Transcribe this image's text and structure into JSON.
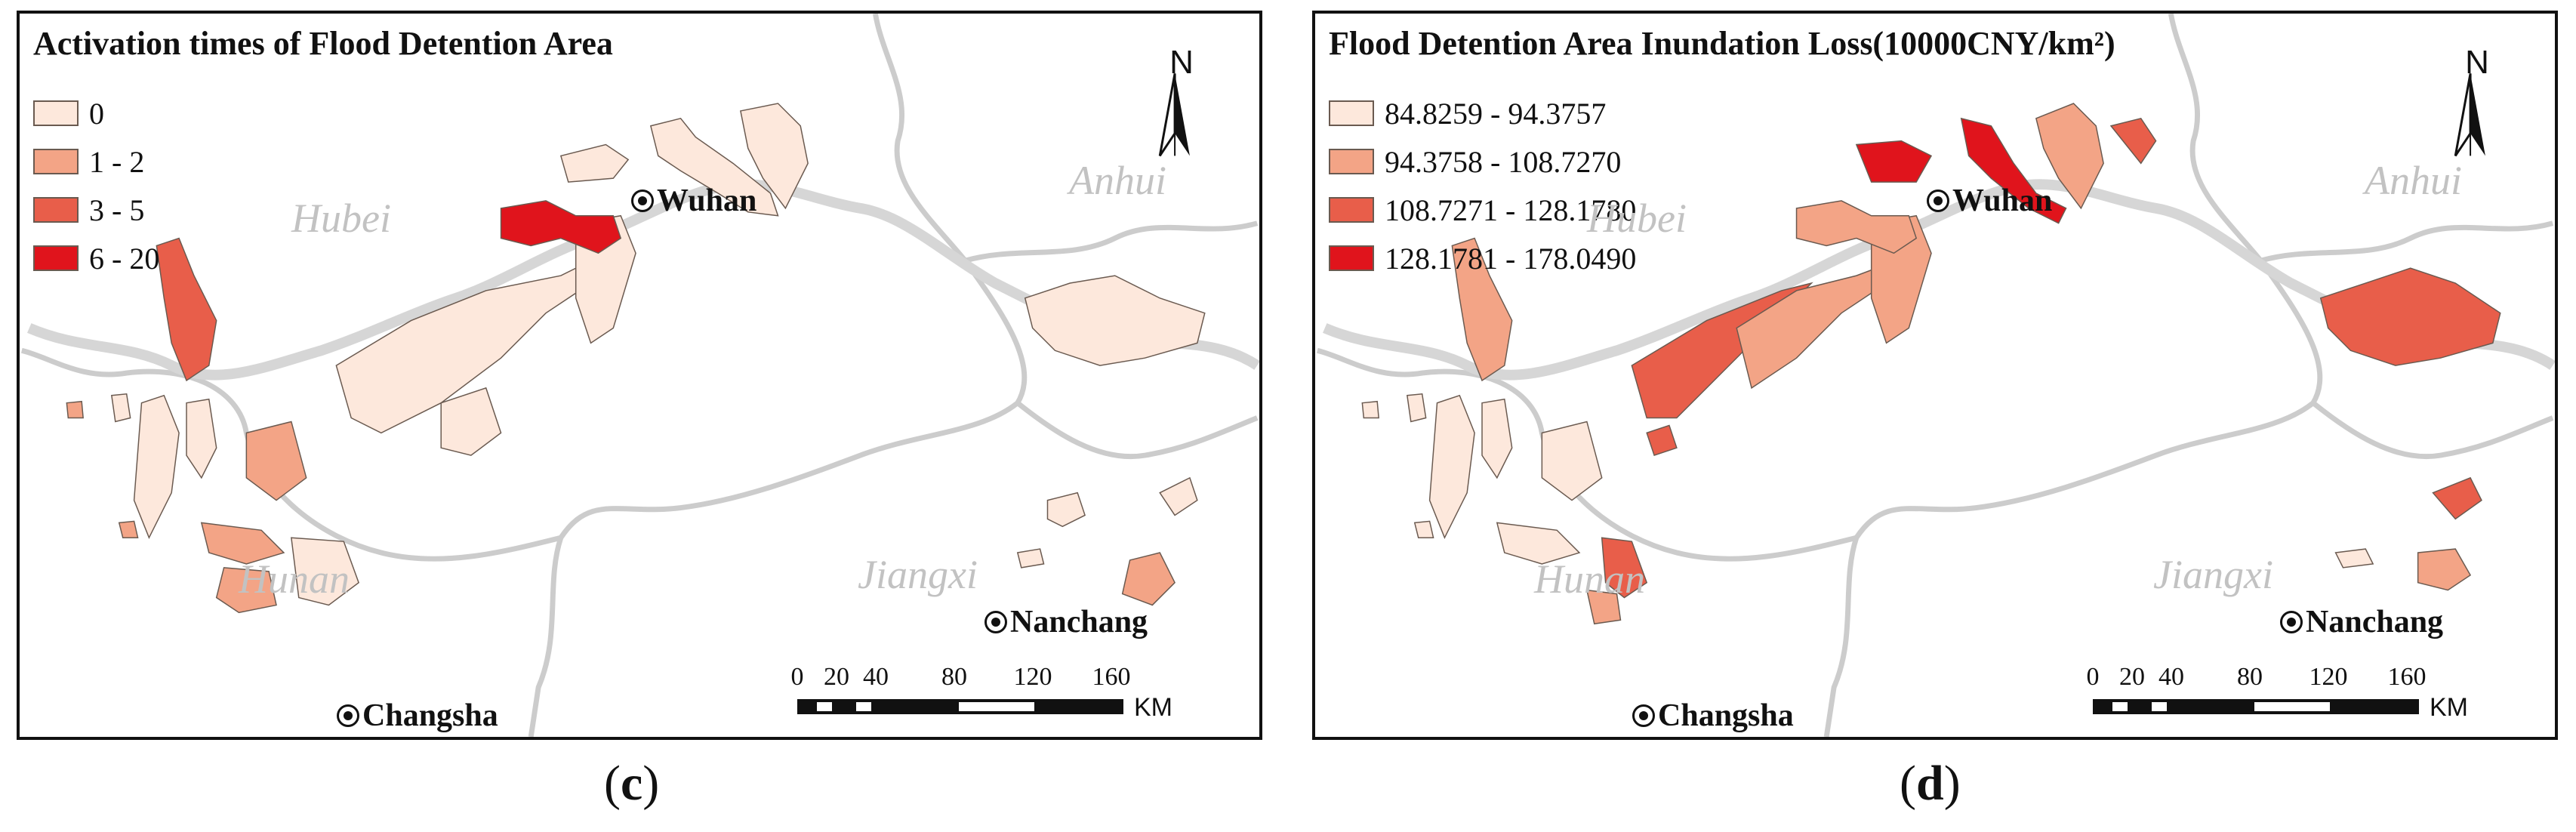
{
  "colors": {
    "class1": "#fde8dc",
    "class2": "#f3a486",
    "class3": "#e85e4a",
    "class4": "#e0141c",
    "boundary": "#c8c8c8",
    "river": "#d0d0d0"
  },
  "panel_c": {
    "legend_title": "Activation times of Flood Detention Area",
    "legend": [
      {
        "label": "0",
        "color": "#fde8dc"
      },
      {
        "label": "1 - 2",
        "color": "#f3a486"
      },
      {
        "label": "3 - 5",
        "color": "#e85e4a"
      },
      {
        "label": "6 - 20",
        "color": "#e0141c"
      }
    ],
    "regions": {
      "hubei": "Hubei",
      "anhui": "Anhui",
      "hunan": "Hunan",
      "jiangxi": "Jiangxi"
    },
    "cities": {
      "wuhan": "Wuhan",
      "nanchang": "Nanchang",
      "changsha": "Changsha"
    },
    "north_label": "N",
    "scale_ticks": [
      "0",
      "20",
      "40",
      "80",
      "120",
      "160"
    ],
    "scale_unit": "KM",
    "caption_open": "(",
    "caption_letter": "c",
    "caption_close": ")"
  },
  "panel_d": {
    "legend_title": "Flood Detention Area Inundation Loss(10000CNY/km²)",
    "legend": [
      {
        "label": "84.8259 - 94.3757",
        "color": "#fde8dc"
      },
      {
        "label": "94.3758 - 108.7270",
        "color": "#f3a486"
      },
      {
        "label": "108.7271 - 128.1780",
        "color": "#e85e4a"
      },
      {
        "label": "128.1781 - 178.0490",
        "color": "#e0141c"
      }
    ],
    "regions": {
      "hubei": "Hubei",
      "anhui": "Anhui",
      "hunan": "Hunan",
      "jiangxi": "Jiangxi"
    },
    "cities": {
      "wuhan": "Wuhan",
      "nanchang": "Nanchang",
      "changsha": "Changsha"
    },
    "north_label": "N",
    "scale_ticks": [
      "0",
      "20",
      "40",
      "80",
      "120",
      "160"
    ],
    "scale_unit": "KM",
    "caption_open": "(",
    "caption_letter": "d",
    "caption_close": ")"
  }
}
